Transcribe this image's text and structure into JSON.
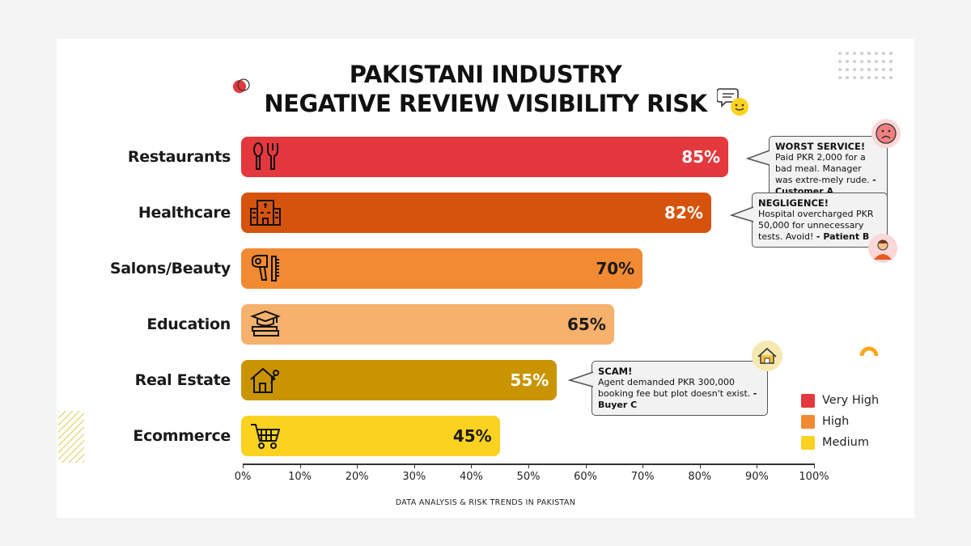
{
  "chart_data": {
    "type": "bar",
    "orientation": "horizontal",
    "title_line1": "PAKISTANI INDUSTRY",
    "title_line2": "NEGATIVE REVIEW VISIBILITY RISK",
    "categories": [
      "Restaurants",
      "Healthcare",
      "Salons/Beauty",
      "Education",
      "Real Estate",
      "Ecommerce"
    ],
    "values": [
      85,
      82,
      70,
      65,
      55,
      45
    ],
    "value_labels": [
      "85%",
      "82%",
      "70%",
      "65%",
      "55%",
      "45%"
    ],
    "bar_colors": [
      "#e3383d",
      "#d6530e",
      "#f18a33",
      "#f6b16d",
      "#c99400",
      "#fcd221"
    ],
    "value_label_colors": [
      "#ffffff",
      "#ffffff",
      "#1a1a1a",
      "#1a1a1a",
      "#ffffff",
      "#1a1a1a"
    ],
    "icons": [
      "utensils-icon",
      "hospital-icon",
      "hair-dryer-comb-icon",
      "graduation-books-icon",
      "house-key-icon",
      "shopping-cart-icon"
    ],
    "xlim": [
      0,
      100
    ],
    "x_ticks": [
      "0%",
      "10%",
      "20%",
      "30%",
      "40%",
      "50%",
      "60%",
      "70%",
      "80%",
      "90%",
      "100%"
    ],
    "grid": false,
    "legend": [
      {
        "label": "Very High",
        "color": "#e3383d"
      },
      {
        "label": "High",
        "color": "#f18a33"
      },
      {
        "label": "Medium",
        "color": "#fcd221"
      }
    ],
    "legend_position": "bottom-right",
    "footer": "DATA ANALYSIS & RISK TRENDS IN PAKISTAN",
    "annotations": [
      {
        "heading": "WORST SERVICE!",
        "text": "Paid PKR 2,000 for a bad meal. Manager was extre-mely rude.",
        "author": "- Customer A",
        "icon": "sad-face-icon"
      },
      {
        "heading": "NEGLIGENCE!",
        "text": "Hospital overcharged PKR 50,000 for unnecessary tests. Avoid!",
        "author": "- Patient B",
        "icon": "person-avatar-icon"
      },
      {
        "heading": "SCAM!",
        "text": "Agent demanded PKR 300,000 booking fee but plot doesn't exist.",
        "author": "- Buyer C",
        "icon": "house-badge-icon"
      }
    ]
  }
}
